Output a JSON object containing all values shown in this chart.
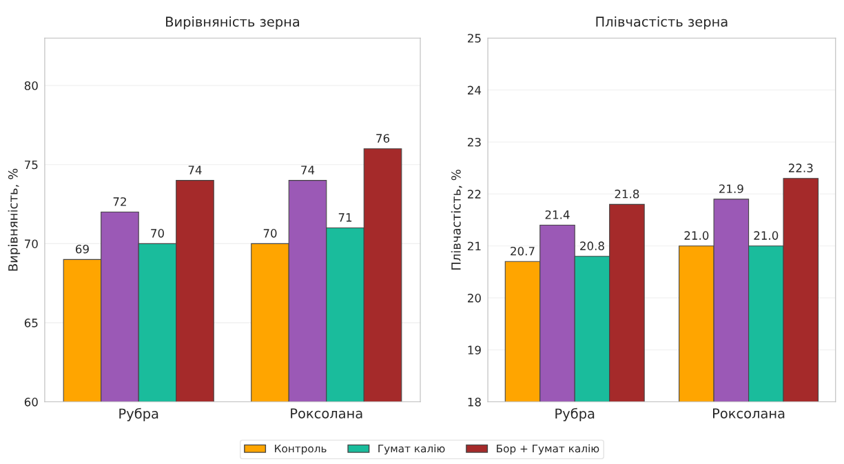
{
  "chart_data": [
    {
      "type": "bar",
      "title": "Вирівняність зерна",
      "ylabel": "Вирівняність, %",
      "categories": [
        "Рубра",
        "Роксолана"
      ],
      "ylim": [
        60,
        83
      ],
      "yticks": [
        60,
        65,
        70,
        75,
        80
      ],
      "grid": "y",
      "data_labels": true,
      "legend": "bottom",
      "series": [
        {
          "name": "Контроль",
          "color": "#ffa500",
          "values": [
            69,
            70
          ]
        },
        {
          "color": "#9b59b6",
          "values": [
            72,
            74
          ]
        },
        {
          "name": "Гумат калію",
          "color": "#1abc9c",
          "values": [
            70,
            71
          ]
        },
        {
          "name": "Бор + Гумат калію",
          "color": "#a52a2a",
          "values": [
            74,
            76
          ]
        }
      ]
    },
    {
      "type": "bar",
      "title": "Плівчастість зерна",
      "ylabel": "Плівчастість, %",
      "categories": [
        "Рубра",
        "Роксолана"
      ],
      "ylim": [
        18,
        25
      ],
      "yticks": [
        18,
        19,
        20,
        21,
        22,
        23,
        24,
        25
      ],
      "grid": "y",
      "series": [
        {
          "color": "#ffa500",
          "values": [
            20.7,
            21.0
          ],
          "value_labels": [
            "20.7",
            "21.0"
          ]
        },
        {
          "color": "#9b59b6",
          "values": [
            21.4,
            21.9
          ],
          "value_labels": [
            "21.4",
            "21.9"
          ]
        },
        {
          "color": "#1abc9c",
          "values": [
            20.8,
            21.0
          ],
          "value_labels": [
            "20.8",
            "21.0"
          ]
        },
        {
          "color": "#a52a2a",
          "values": [
            21.8,
            22.3
          ],
          "value_labels": [
            "21.8",
            "22.3"
          ]
        }
      ]
    }
  ]
}
